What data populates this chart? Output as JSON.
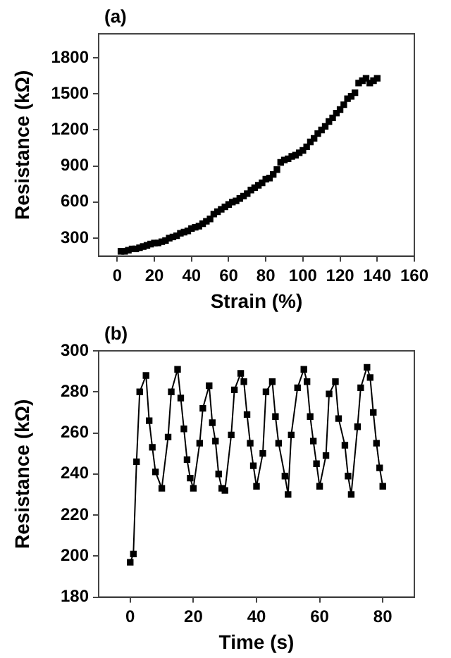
{
  "chart_data": [
    {
      "type": "scatter",
      "title": "(a)",
      "xlabel": "Strain (%)",
      "ylabel": "Resistance (kΩ)",
      "marker": "square",
      "grid": false,
      "legend": false,
      "x": [
        2,
        4,
        6,
        8,
        10,
        12,
        14,
        16,
        18,
        20,
        22,
        24,
        26,
        28,
        30,
        32,
        34,
        36,
        38,
        40,
        42,
        44,
        46,
        48,
        50,
        52,
        54,
        56,
        58,
        60,
        62,
        64,
        66,
        68,
        70,
        72,
        74,
        76,
        78,
        80,
        82,
        84,
        86,
        88,
        90,
        92,
        94,
        96,
        98,
        100,
        102,
        104,
        106,
        108,
        110,
        112,
        114,
        116,
        118,
        120,
        122,
        124,
        126,
        128,
        130,
        132,
        134,
        136,
        138,
        140
      ],
      "series": [
        {
          "color": "#000000",
          "values": [
            190,
            190,
            200,
            210,
            210,
            220,
            230,
            240,
            250,
            260,
            260,
            270,
            280,
            300,
            310,
            320,
            340,
            350,
            360,
            380,
            390,
            400,
            420,
            440,
            460,
            500,
            520,
            540,
            560,
            580,
            600,
            610,
            630,
            650,
            670,
            700,
            720,
            740,
            760,
            790,
            800,
            830,
            870,
            930,
            950,
            960,
            980,
            990,
            1010,
            1030,
            1060,
            1100,
            1130,
            1170,
            1200,
            1230,
            1270,
            1300,
            1340,
            1370,
            1410,
            1460,
            1480,
            1510,
            1590,
            1610,
            1630,
            1590,
            1610,
            1630
          ]
        }
      ],
      "xlim": [
        -10,
        160
      ],
      "ylim": [
        150,
        2000
      ],
      "xticks": [
        0,
        20,
        40,
        60,
        80,
        100,
        120,
        140,
        160
      ],
      "yticks": [
        300,
        600,
        900,
        1200,
        1500,
        1800
      ]
    },
    {
      "type": "line",
      "title": "(b)",
      "xlabel": "Time (s)",
      "ylabel": "Resistance (kΩ)",
      "marker": "square",
      "line_style": "solid",
      "grid": false,
      "legend": false,
      "x": [
        0,
        1,
        2,
        3,
        5,
        6,
        7,
        8,
        10,
        12,
        13,
        15,
        16,
        17,
        18,
        19,
        20,
        22,
        23,
        25,
        26,
        27,
        28,
        29,
        30,
        32,
        33,
        35,
        36,
        37,
        38,
        39,
        40,
        42,
        43,
        45,
        46,
        47,
        49,
        50,
        51,
        53,
        55,
        56,
        57,
        58,
        59,
        60,
        62,
        63,
        65,
        66,
        68,
        69,
        70,
        72,
        73,
        75,
        76,
        77,
        78,
        79,
        80
      ],
      "series": [
        {
          "color": "#000000",
          "values": [
            197,
            201,
            246,
            280,
            288,
            266,
            253,
            241,
            233,
            258,
            280,
            291,
            277,
            262,
            247,
            238,
            233,
            255,
            272,
            283,
            265,
            256,
            240,
            233,
            232,
            259,
            281,
            289,
            285,
            269,
            255,
            244,
            234,
            250,
            280,
            285,
            268,
            255,
            239,
            230,
            259,
            282,
            291,
            285,
            268,
            256,
            245,
            234,
            249,
            279,
            285,
            267,
            254,
            239,
            230,
            263,
            282,
            292,
            287,
            270,
            255,
            243,
            234
          ]
        }
      ],
      "xlim": [
        -10,
        90
      ],
      "ylim": [
        180,
        300
      ],
      "xticks": [
        0,
        20,
        40,
        60,
        80
      ],
      "yticks": [
        180,
        200,
        220,
        240,
        260,
        280,
        300
      ]
    }
  ]
}
